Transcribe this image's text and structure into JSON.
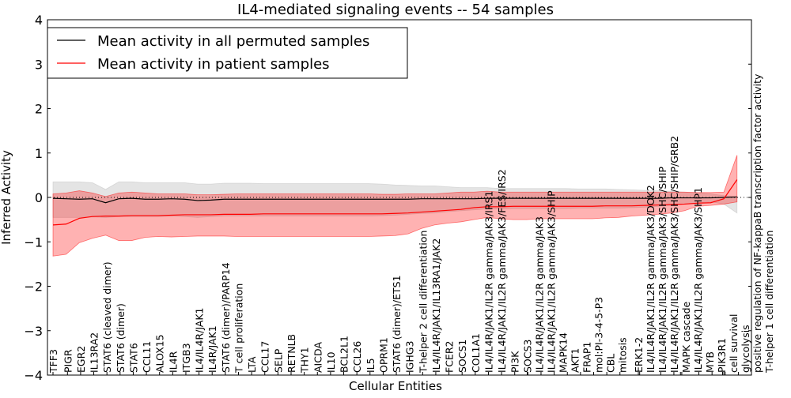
{
  "chart_data": {
    "type": "line",
    "title": "IL4-mediated signaling events -- 54 samples",
    "xlabel": "Cellular Entities",
    "ylabel": "Inferred Activity",
    "ylim": [
      -4,
      4
    ],
    "xlim": [
      -0.4,
      53.0
    ],
    "yticks": [
      -4,
      -3,
      -2,
      -1,
      0,
      1,
      2,
      3,
      4
    ],
    "ytick_labels": [
      "−4",
      "−3",
      "−2",
      "−1",
      "0",
      "1",
      "2",
      "3",
      "4"
    ],
    "grid": false,
    "legend_position": "top-left",
    "legend": [
      {
        "label": "Mean activity in all permuted samples",
        "color": "#000000"
      },
      {
        "label": "Mean activity in patient samples",
        "color": "#ff0000"
      }
    ],
    "x_labels": [
      {
        "x": 0,
        "text": "TFF3"
      },
      {
        "x": 1.1,
        "text": "PIGR"
      },
      {
        "x": 2.1,
        "text": "EGR2"
      },
      {
        "x": 3.1,
        "text": "IL13RA2"
      },
      {
        "x": 4.1,
        "text": "STAT6 (cleaved dimer)"
      },
      {
        "x": 5.1,
        "text": "STAT6 (dimer)"
      },
      {
        "x": 6.1,
        "text": "STAT6"
      },
      {
        "x": 7.1,
        "text": "CCL11"
      },
      {
        "x": 8.1,
        "text": "ALOX15"
      },
      {
        "x": 9.1,
        "text": "IL4R"
      },
      {
        "x": 10.1,
        "text": "ITGB3"
      },
      {
        "x": 11.1,
        "text": "IL4/IL4R/JAK1"
      },
      {
        "x": 12.1,
        "text": "IL4R/JAK1"
      },
      {
        "x": 13.1,
        "text": "STAT6 (dimer)/PARP14"
      },
      {
        "x": 14.1,
        "text": "T cell proliferation"
      },
      {
        "x": 15.1,
        "text": "LTA"
      },
      {
        "x": 16.1,
        "text": "CCL17"
      },
      {
        "x": 17.1,
        "text": "SELP"
      },
      {
        "x": 18.1,
        "text": "RETNLB"
      },
      {
        "x": 19.1,
        "text": "THY1"
      },
      {
        "x": 20.1,
        "text": "AICDA"
      },
      {
        "x": 21.1,
        "text": "IL10"
      },
      {
        "x": 22.1,
        "text": "BCL2L1"
      },
      {
        "x": 23.1,
        "text": "CCL26"
      },
      {
        "x": 24.1,
        "text": "IL5"
      },
      {
        "x": 25.1,
        "text": "OPRM1"
      },
      {
        "x": 26.1,
        "text": "STAT6 (dimer)/ETS1"
      },
      {
        "x": 27.1,
        "text": "IGHG3"
      },
      {
        "x": 28.1,
        "text": "T-helper 2 cell differentiation"
      },
      {
        "x": 29.1,
        "text": "IL4/IL4R/JAK1/IL13RA1/JAK2"
      },
      {
        "x": 30.1,
        "text": "FCER2"
      },
      {
        "x": 31.1,
        "text": "SOCS1"
      },
      {
        "x": 32.1,
        "text": "COL1A1"
      },
      {
        "x": 33.1,
        "text": "IL4/IL4R/JAK1/IL2R gamma/JAK3/IRS1"
      },
      {
        "x": 34.1,
        "text": "IL4/IL4R/JAK1/IL2R gamma/JAK3/FES/IRS2"
      },
      {
        "x": 35.1,
        "text": "PI3K"
      },
      {
        "x": 36.05,
        "text": "SOCS3"
      },
      {
        "x": 36.1,
        "text": "IL4/IL4R/JAK1/IL2R gamma/JAK3"
      },
      {
        "x": 37.1,
        "text": "IL4/IL4R/JAK1/IL2R gamma/JAK3/SHIP"
      },
      {
        "x": 38.1,
        "text": "MAPK14"
      },
      {
        "x": 39.1,
        "text": "AKT1"
      },
      {
        "x": 40.1,
        "text": "FRAP1"
      },
      {
        "x": 41.1,
        "text": "mol:PI-3-4-5-P3"
      },
      {
        "x": 42.1,
        "text": "CBL"
      },
      {
        "x": 43.1,
        "text": "mitosis"
      },
      {
        "x": 44.5,
        "text": "ERK1-2"
      },
      {
        "x": 44.6,
        "text": "IL4/IL4R/JAK1/IL2R gamma/JAK3/DOK2"
      },
      {
        "x": 46.2,
        "text": "IL4/IL4R/JAK1/IL2R gamma/JAK3/SHC/SHIP"
      },
      {
        "x": 47.2,
        "text": "IL4/IL4R/JAK1/IL2R gamma/JAK3/SHC/SHIP/GRB2"
      },
      {
        "x": 47.7,
        "text": "MAPK cascade"
      },
      {
        "x": 47.8,
        "text": "IL4/IL4R/JAK1/IL2R gamma/JAK3/SHP1"
      },
      {
        "x": 49.1,
        "text": "MYB"
      },
      {
        "x": 50.1,
        "text": "PIK3R1"
      },
      {
        "x": 50.9,
        "text": "cell survival"
      },
      {
        "x": 51.0,
        "text": "glycolysis"
      },
      {
        "x": 51.1,
        "text": "positive regulation of NF-kappaB transcription factor activity"
      },
      {
        "x": 52.1,
        "text": "T-helper 1 cell differentiation"
      }
    ],
    "series": [
      {
        "name": "Mean activity in all permuted samples",
        "color": "#000000",
        "mean": [
          -0.02,
          -0.03,
          -0.04,
          -0.03,
          -0.12,
          -0.03,
          -0.02,
          -0.04,
          -0.04,
          -0.03,
          -0.04,
          -0.07,
          -0.06,
          -0.04,
          -0.04,
          -0.04,
          -0.04,
          -0.04,
          -0.04,
          -0.04,
          -0.04,
          -0.04,
          -0.04,
          -0.04,
          -0.04,
          -0.04,
          -0.04,
          -0.04,
          -0.03,
          -0.03,
          -0.03,
          -0.03,
          -0.03,
          -0.02,
          -0.02,
          -0.02,
          -0.02,
          -0.02,
          -0.02,
          -0.02,
          -0.02,
          -0.02,
          -0.02,
          -0.02,
          -0.02,
          -0.02,
          -0.02,
          -0.01,
          -0.01,
          -0.01,
          -0.01,
          0.0,
          0.01
        ],
        "upper": [
          0.35,
          0.35,
          0.35,
          0.33,
          0.18,
          0.35,
          0.35,
          0.33,
          0.33,
          0.33,
          0.33,
          0.3,
          0.3,
          0.32,
          0.32,
          0.32,
          0.31,
          0.31,
          0.31,
          0.31,
          0.31,
          0.31,
          0.31,
          0.31,
          0.31,
          0.3,
          0.28,
          0.27,
          0.26,
          0.26,
          0.24,
          0.22,
          0.22,
          0.22,
          0.2,
          0.2,
          0.2,
          0.2,
          0.2,
          0.2,
          0.19,
          0.19,
          0.19,
          0.18,
          0.17,
          0.16,
          0.15,
          0.14,
          0.12,
          0.1,
          0.08,
          0.04,
          0.02
        ],
        "lower": [
          -0.45,
          -0.45,
          -0.45,
          -0.44,
          -0.45,
          -0.43,
          -0.43,
          -0.43,
          -0.43,
          -0.42,
          -0.43,
          -0.45,
          -0.43,
          -0.42,
          -0.42,
          -0.42,
          -0.42,
          -0.42,
          -0.42,
          -0.42,
          -0.42,
          -0.42,
          -0.42,
          -0.42,
          -0.42,
          -0.41,
          -0.4,
          -0.38,
          -0.36,
          -0.35,
          -0.32,
          -0.3,
          -0.28,
          -0.26,
          -0.26,
          -0.25,
          -0.25,
          -0.25,
          -0.25,
          -0.25,
          -0.24,
          -0.24,
          -0.24,
          -0.24,
          -0.23,
          -0.22,
          -0.2,
          -0.18,
          -0.15,
          -0.12,
          -0.1,
          -0.15,
          -0.35
        ]
      },
      {
        "name": "Mean activity in patient samples",
        "color": "#ff0000",
        "mean": [
          -0.62,
          -0.6,
          -0.47,
          -0.43,
          -0.42,
          -0.42,
          -0.41,
          -0.41,
          -0.41,
          -0.4,
          -0.39,
          -0.39,
          -0.39,
          -0.38,
          -0.38,
          -0.38,
          -0.37,
          -0.37,
          -0.37,
          -0.37,
          -0.37,
          -0.37,
          -0.37,
          -0.37,
          -0.37,
          -0.37,
          -0.36,
          -0.35,
          -0.33,
          -0.31,
          -0.29,
          -0.27,
          -0.23,
          -0.21,
          -0.21,
          -0.2,
          -0.2,
          -0.2,
          -0.2,
          -0.2,
          -0.2,
          -0.2,
          -0.19,
          -0.19,
          -0.19,
          -0.18,
          -0.17,
          -0.16,
          -0.15,
          -0.13,
          -0.12,
          -0.03,
          0.4
        ],
        "upper": [
          0.08,
          0.1,
          0.15,
          0.1,
          0.02,
          0.1,
          0.12,
          0.1,
          0.08,
          0.08,
          0.08,
          0.06,
          0.06,
          0.07,
          0.08,
          0.08,
          0.08,
          0.08,
          0.08,
          0.08,
          0.08,
          0.08,
          0.08,
          0.08,
          0.08,
          0.07,
          0.07,
          0.08,
          0.08,
          0.08,
          0.1,
          0.12,
          0.12,
          0.14,
          0.12,
          0.12,
          0.12,
          0.12,
          0.12,
          0.12,
          0.12,
          0.12,
          0.12,
          0.12,
          0.12,
          0.12,
          0.12,
          0.12,
          0.12,
          0.11,
          0.11,
          0.12,
          0.95
        ],
        "lower": [
          -1.32,
          -1.28,
          -1.02,
          -0.92,
          -0.85,
          -0.97,
          -0.97,
          -0.9,
          -0.88,
          -0.89,
          -0.88,
          -0.87,
          -0.87,
          -0.87,
          -0.88,
          -0.88,
          -0.88,
          -0.88,
          -0.88,
          -0.88,
          -0.88,
          -0.88,
          -0.88,
          -0.88,
          -0.88,
          -0.87,
          -0.86,
          -0.82,
          -0.7,
          -0.62,
          -0.58,
          -0.55,
          -0.5,
          -0.45,
          -0.48,
          -0.5,
          -0.5,
          -0.48,
          -0.48,
          -0.48,
          -0.48,
          -0.48,
          -0.46,
          -0.45,
          -0.42,
          -0.4,
          -0.38,
          -0.35,
          -0.3,
          -0.2,
          -0.18,
          -0.15,
          -0.1
        ]
      }
    ]
  }
}
